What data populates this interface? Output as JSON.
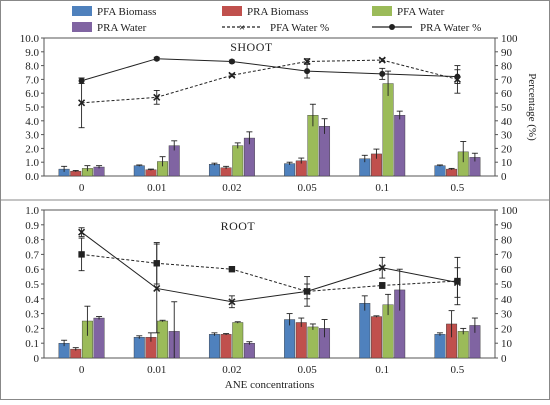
{
  "chart_data": [
    {
      "type": "bar",
      "panel": "SHOOT",
      "title": "SHOOT",
      "categories": [
        "0",
        "0.01",
        "0.02",
        "0.05",
        "0.1",
        "0.5"
      ],
      "ylim": [
        0,
        10
      ],
      "ylim_right": [
        0,
        100
      ],
      "yticks": [
        "0.0",
        "1.0",
        "2.0",
        "3.0",
        "4.0",
        "5.0",
        "6.0",
        "7.0",
        "8.0",
        "9.0",
        "10.0"
      ],
      "yticks_right": [
        "0",
        "10",
        "20",
        "30",
        "40",
        "50",
        "60",
        "70",
        "80",
        "90",
        "100"
      ],
      "ylabel_right": "Percentage (%)",
      "xlabel": "",
      "series": [
        {
          "name": "PFA Biomass",
          "color": "#4f81bd",
          "values": [
            0.5,
            0.75,
            0.85,
            0.9,
            1.25,
            0.75
          ],
          "errors": [
            0.2,
            0.05,
            0.08,
            0.1,
            0.25,
            0.05
          ]
        },
        {
          "name": "PRA Biomass",
          "color": "#c0504d",
          "values": [
            0.35,
            0.45,
            0.6,
            1.1,
            1.6,
            0.5
          ],
          "errors": [
            0.05,
            0.05,
            0.1,
            0.2,
            0.35,
            0.05
          ]
        },
        {
          "name": "PFA Water",
          "color": "#9bbb59",
          "values": [
            0.55,
            1.05,
            2.2,
            4.4,
            6.7,
            1.75
          ],
          "errors": [
            0.2,
            0.35,
            0.2,
            0.8,
            0.9,
            0.75
          ]
        },
        {
          "name": "PRA Water",
          "color": "#8064a2",
          "values": [
            0.65,
            2.2,
            2.75,
            3.6,
            4.4,
            1.35
          ],
          "errors": [
            0.1,
            0.35,
            0.45,
            0.55,
            0.3,
            0.3
          ]
        }
      ],
      "lines": [
        {
          "name": "PFA Water %",
          "style": "dashed",
          "marker": "x",
          "values": [
            53,
            57,
            73,
            83,
            84,
            70
          ],
          "errors": [
            18,
            5,
            1,
            2,
            1,
            10
          ]
        },
        {
          "name": "PRA Water %",
          "style": "solid",
          "marker": "circle",
          "values": [
            69,
            85,
            83,
            76,
            74,
            72
          ],
          "errors": [
            2,
            1,
            1,
            5,
            4,
            5
          ]
        }
      ]
    },
    {
      "type": "bar",
      "panel": "ROOT",
      "title": "ROOT",
      "categories": [
        "0",
        "0.01",
        "0.02",
        "0.05",
        "0.1",
        "0.5"
      ],
      "ylim": [
        0,
        1
      ],
      "ylim_right": [
        0,
        100
      ],
      "yticks": [
        "0",
        "0.1",
        "0.2",
        "0.3",
        "0.4",
        "0.5",
        "0.6",
        "0.7",
        "0.8",
        "0.9",
        "1.0"
      ],
      "yticks_right": [
        "0",
        "10",
        "20",
        "30",
        "40",
        "50",
        "60",
        "70",
        "80",
        "90",
        "100"
      ],
      "xlabel": "ANE concentrations",
      "series": [
        {
          "name": "PFA Biomass",
          "color": "#4f81bd",
          "values": [
            0.1,
            0.14,
            0.16,
            0.26,
            0.37,
            0.16
          ],
          "errors": [
            0.02,
            0.01,
            0.01,
            0.04,
            0.05,
            0.01
          ]
        },
        {
          "name": "PRA Biomass",
          "color": "#c0504d",
          "values": [
            0.06,
            0.14,
            0.16,
            0.24,
            0.28,
            0.23
          ],
          "errors": [
            0.01,
            0.03,
            0.005,
            0.03,
            0.005,
            0.09
          ]
        },
        {
          "name": "PFA Water",
          "color": "#9bbb59",
          "values": [
            0.25,
            0.25,
            0.24,
            0.21,
            0.36,
            0.18
          ],
          "errors": [
            0.1,
            0.005,
            0.005,
            0.02,
            0.07,
            0.02
          ]
        },
        {
          "name": "PRA Water",
          "color": "#8064a2",
          "values": [
            0.27,
            0.18,
            0.1,
            0.2,
            0.46,
            0.22
          ],
          "errors": [
            0.01,
            0.2,
            0.01,
            0.06,
            0.14,
            0.05
          ]
        }
      ],
      "lines": [
        {
          "name": "PFA Water %",
          "style": "dashed",
          "marker": "square",
          "values": [
            70,
            64,
            60,
            45,
            49,
            52
          ],
          "errors": [
            11,
            14,
            1,
            10,
            2,
            16
          ]
        },
        {
          "name": "PRA Water %",
          "style": "solid",
          "marker": "x",
          "values": [
            85,
            47,
            38,
            45,
            61,
            51
          ],
          "errors": [
            3,
            30,
            4,
            5,
            7,
            10
          ]
        }
      ]
    }
  ],
  "legend": {
    "placement": "top",
    "items": [
      {
        "label": "PFA Biomass",
        "kind": "box",
        "color": "#4f81bd"
      },
      {
        "label": "PRA Biomass",
        "kind": "box",
        "color": "#c0504d"
      },
      {
        "label": "PFA Water",
        "kind": "box",
        "color": "#9bbb59"
      },
      {
        "label": "PRA Water",
        "kind": "box",
        "color": "#8064a2"
      },
      {
        "label": "PFA Water %",
        "kind": "dashed-x"
      },
      {
        "label": "PRA Water %",
        "kind": "solid-dot"
      }
    ]
  }
}
